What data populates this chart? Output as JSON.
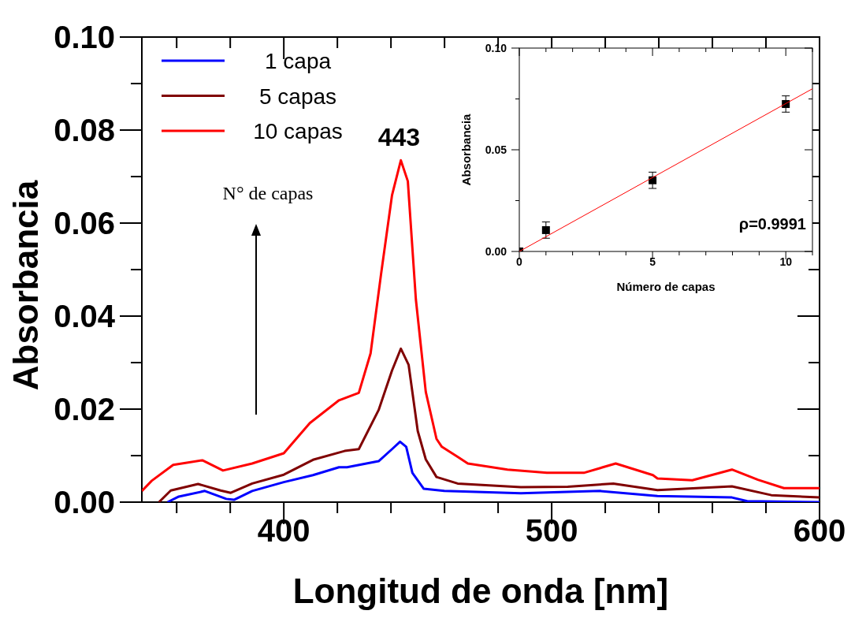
{
  "chart_data": [
    {
      "type": "line",
      "xlabel": "Longitud de onda [nm]",
      "ylabel": "Absorbancia",
      "xlim": [
        347,
        600
      ],
      "ylim": [
        0,
        0.1
      ],
      "xticks": [
        {
          "value": 360,
          "label": null
        },
        {
          "value": 380,
          "label": null
        },
        400,
        {
          "value": 420,
          "label": null
        },
        {
          "value": 440,
          "label": null
        },
        {
          "value": 460,
          "label": null
        },
        {
          "value": 480,
          "label": null
        },
        500,
        {
          "value": 520,
          "label": null
        },
        {
          "value": 540,
          "label": null
        },
        {
          "value": 560,
          "label": null
        },
        {
          "value": 580,
          "label": null
        },
        600
      ],
      "yticks": [
        {
          "value": 0,
          "label": "0.00"
        },
        {
          "value": 0.01,
          "label": null
        },
        {
          "value": 0.02,
          "label": "0.02"
        },
        {
          "value": 0.03,
          "label": null
        },
        {
          "value": 0.04,
          "label": "0.04"
        },
        {
          "value": 0.05,
          "label": null
        },
        {
          "value": 0.06,
          "label": "0.06"
        },
        {
          "value": 0.07,
          "label": null
        },
        {
          "value": 0.08,
          "label": "0.08"
        },
        {
          "value": 0.09,
          "label": null
        },
        {
          "value": 0.1,
          "label": "0.10"
        }
      ],
      "legend": "top left",
      "annotations": [
        {
          "text": "443",
          "x": 443,
          "y": 0.0735
        },
        "N° de capas"
      ],
      "series": [
        {
          "name": "1 capa",
          "color": "#0000ff",
          "x": [
            356.6,
            360.8,
            370.5,
            378.5,
            381.4,
            388.2,
            400,
            410.9,
            420.6,
            423.6,
            435.4,
            440.4,
            443.4,
            445.7,
            448,
            452.2,
            459.9,
            488.5,
            518,
            539.5,
            567.3,
            573,
            600
          ],
          "values": [
            0,
            0.0012,
            0.0024,
            0.0007,
            0.0005,
            0.0024,
            0.0043,
            0.0058,
            0.0075,
            0.0075,
            0.0088,
            0.0114,
            0.013,
            0.0119,
            0.0063,
            0.0029,
            0.0024,
            0.0019,
            0.0024,
            0.0013,
            0.001,
            0.0002,
            0
          ]
        },
        {
          "name": "5 capas",
          "color": "#800000",
          "x": [
            353.4,
            357.8,
            368,
            376.4,
            380.2,
            388.2,
            400,
            410.9,
            422.7,
            428,
            435.4,
            440.4,
            443.7,
            446.6,
            450,
            453,
            457,
            464.9,
            488.5,
            506,
            523,
            539.5,
            567.3,
            582,
            600
          ],
          "values": [
            0,
            0.0025,
            0.0039,
            0.0025,
            0.002,
            0.004,
            0.0059,
            0.0091,
            0.011,
            0.0114,
            0.0198,
            0.0283,
            0.033,
            0.0295,
            0.0153,
            0.0092,
            0.0054,
            0.004,
            0.0032,
            0.0033,
            0.004,
            0.0026,
            0.0034,
            0.0015,
            0.001
          ]
        },
        {
          "name": "10 capas",
          "color": "#ff0000",
          "x": [
            347,
            350.7,
            358.7,
            369.6,
            377.3,
            388.2,
            400,
            409.7,
            420.6,
            428,
            432.4,
            436.3,
            440.4,
            443.7,
            446.3,
            449.3,
            453,
            457,
            459,
            465,
            468.7,
            483.5,
            498.2,
            512,
            523.9,
            537.8,
            539.5,
            552.5,
            567.3,
            577,
            586.7,
            600
          ],
          "values": [
            0.0024,
            0.0046,
            0.008,
            0.009,
            0.0068,
            0.0083,
            0.0105,
            0.017,
            0.0219,
            0.0235,
            0.032,
            0.049,
            0.066,
            0.0735,
            0.069,
            0.0436,
            0.0237,
            0.0136,
            0.0119,
            0.0097,
            0.0083,
            0.007,
            0.0063,
            0.0063,
            0.0083,
            0.0058,
            0.0051,
            0.0047,
            0.007,
            0.0048,
            0.003,
            0.003
          ]
        }
      ]
    },
    {
      "type": "scatter",
      "xlabel": "Número de capas",
      "ylabel": "Absorbancia",
      "xlim": [
        0,
        11
      ],
      "ylim": [
        0,
        0.1
      ],
      "xticks": [
        0,
        {
          "value": 1,
          "label": null
        },
        {
          "value": 2,
          "label": null
        },
        {
          "value": 3,
          "label": null
        },
        {
          "value": 4,
          "label": null
        },
        5,
        {
          "value": 6,
          "label": null
        },
        {
          "value": 7,
          "label": null
        },
        {
          "value": 8,
          "label": null
        },
        {
          "value": 9,
          "label": null
        },
        10,
        {
          "value": 11,
          "label": null
        }
      ],
      "yticks": [
        {
          "value": 0,
          "label": "0.00"
        },
        {
          "value": 0.025,
          "label": null
        },
        {
          "value": 0.05,
          "label": "0.05"
        },
        {
          "value": 0.075,
          "label": null
        },
        {
          "value": 0.1,
          "label": "0.10"
        }
      ],
      "annotations": [
        "ρ=0.9991"
      ],
      "series": [
        {
          "marker": "square",
          "color": "#000000",
          "x": [
            0,
            1,
            5,
            10
          ],
          "values": [
            0,
            0.0105,
            0.035,
            0.0725
          ],
          "errors": [
            null,
            0.004,
            0.004,
            0.004
          ]
        },
        {
          "type": "line",
          "color": "#ff0000",
          "x": [
            0,
            11
          ],
          "values": [
            0,
            0.08
          ]
        }
      ]
    }
  ]
}
